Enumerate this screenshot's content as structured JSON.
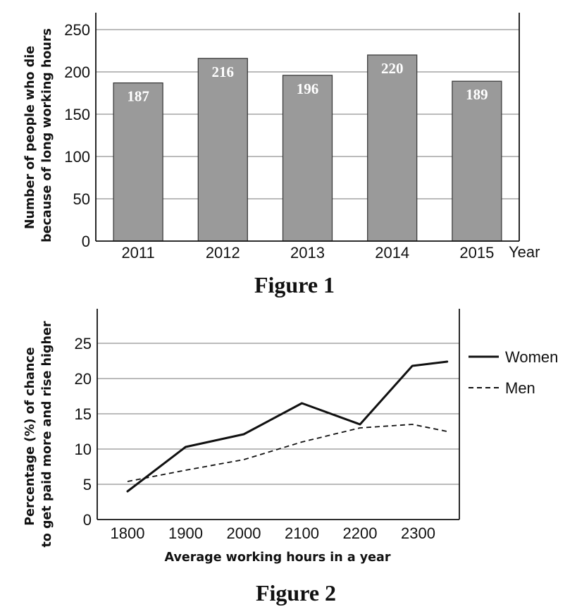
{
  "figure1": {
    "caption": "Figure 1",
    "chart_data": {
      "type": "bar",
      "categories": [
        "2011",
        "2012",
        "2013",
        "2014",
        "2015"
      ],
      "values": [
        187,
        216,
        196,
        220,
        189
      ],
      "data_labels": [
        "187",
        "216",
        "196",
        "220",
        "189"
      ],
      "ylabel_lines": [
        "Number of people who die",
        "because of long working hours"
      ],
      "xlabel": "Year",
      "ylim": [
        0,
        250
      ],
      "yticks": [
        "0",
        "50",
        "100",
        "150",
        "200",
        "250"
      ],
      "grid": true,
      "bar_color": "#9a9a9a"
    }
  },
  "figure2": {
    "caption": "Figure 2",
    "chart_data": {
      "type": "line",
      "x": [
        1800,
        1900,
        2000,
        2100,
        2200,
        2290,
        2350
      ],
      "xticks": [
        "1800",
        "1900",
        "2000",
        "2100",
        "2200",
        "2300"
      ],
      "series": [
        {
          "name": "Women",
          "style": "solid",
          "values": [
            4,
            10.3,
            12.1,
            16.5,
            13.5,
            21.8,
            22.4
          ]
        },
        {
          "name": "Men",
          "style": "dashed",
          "values": [
            5.4,
            7.0,
            8.5,
            11.0,
            13.0,
            13.5,
            12.5
          ]
        }
      ],
      "ylabel_lines": [
        "Percentage (%) of chance",
        "to get paid more and rise higher"
      ],
      "xlabel": "Average working hours in a year",
      "ylim": [
        0,
        29
      ],
      "yticks": [
        "0",
        "5",
        "10",
        "15",
        "20",
        "25"
      ],
      "grid": true,
      "legend": "right"
    }
  }
}
